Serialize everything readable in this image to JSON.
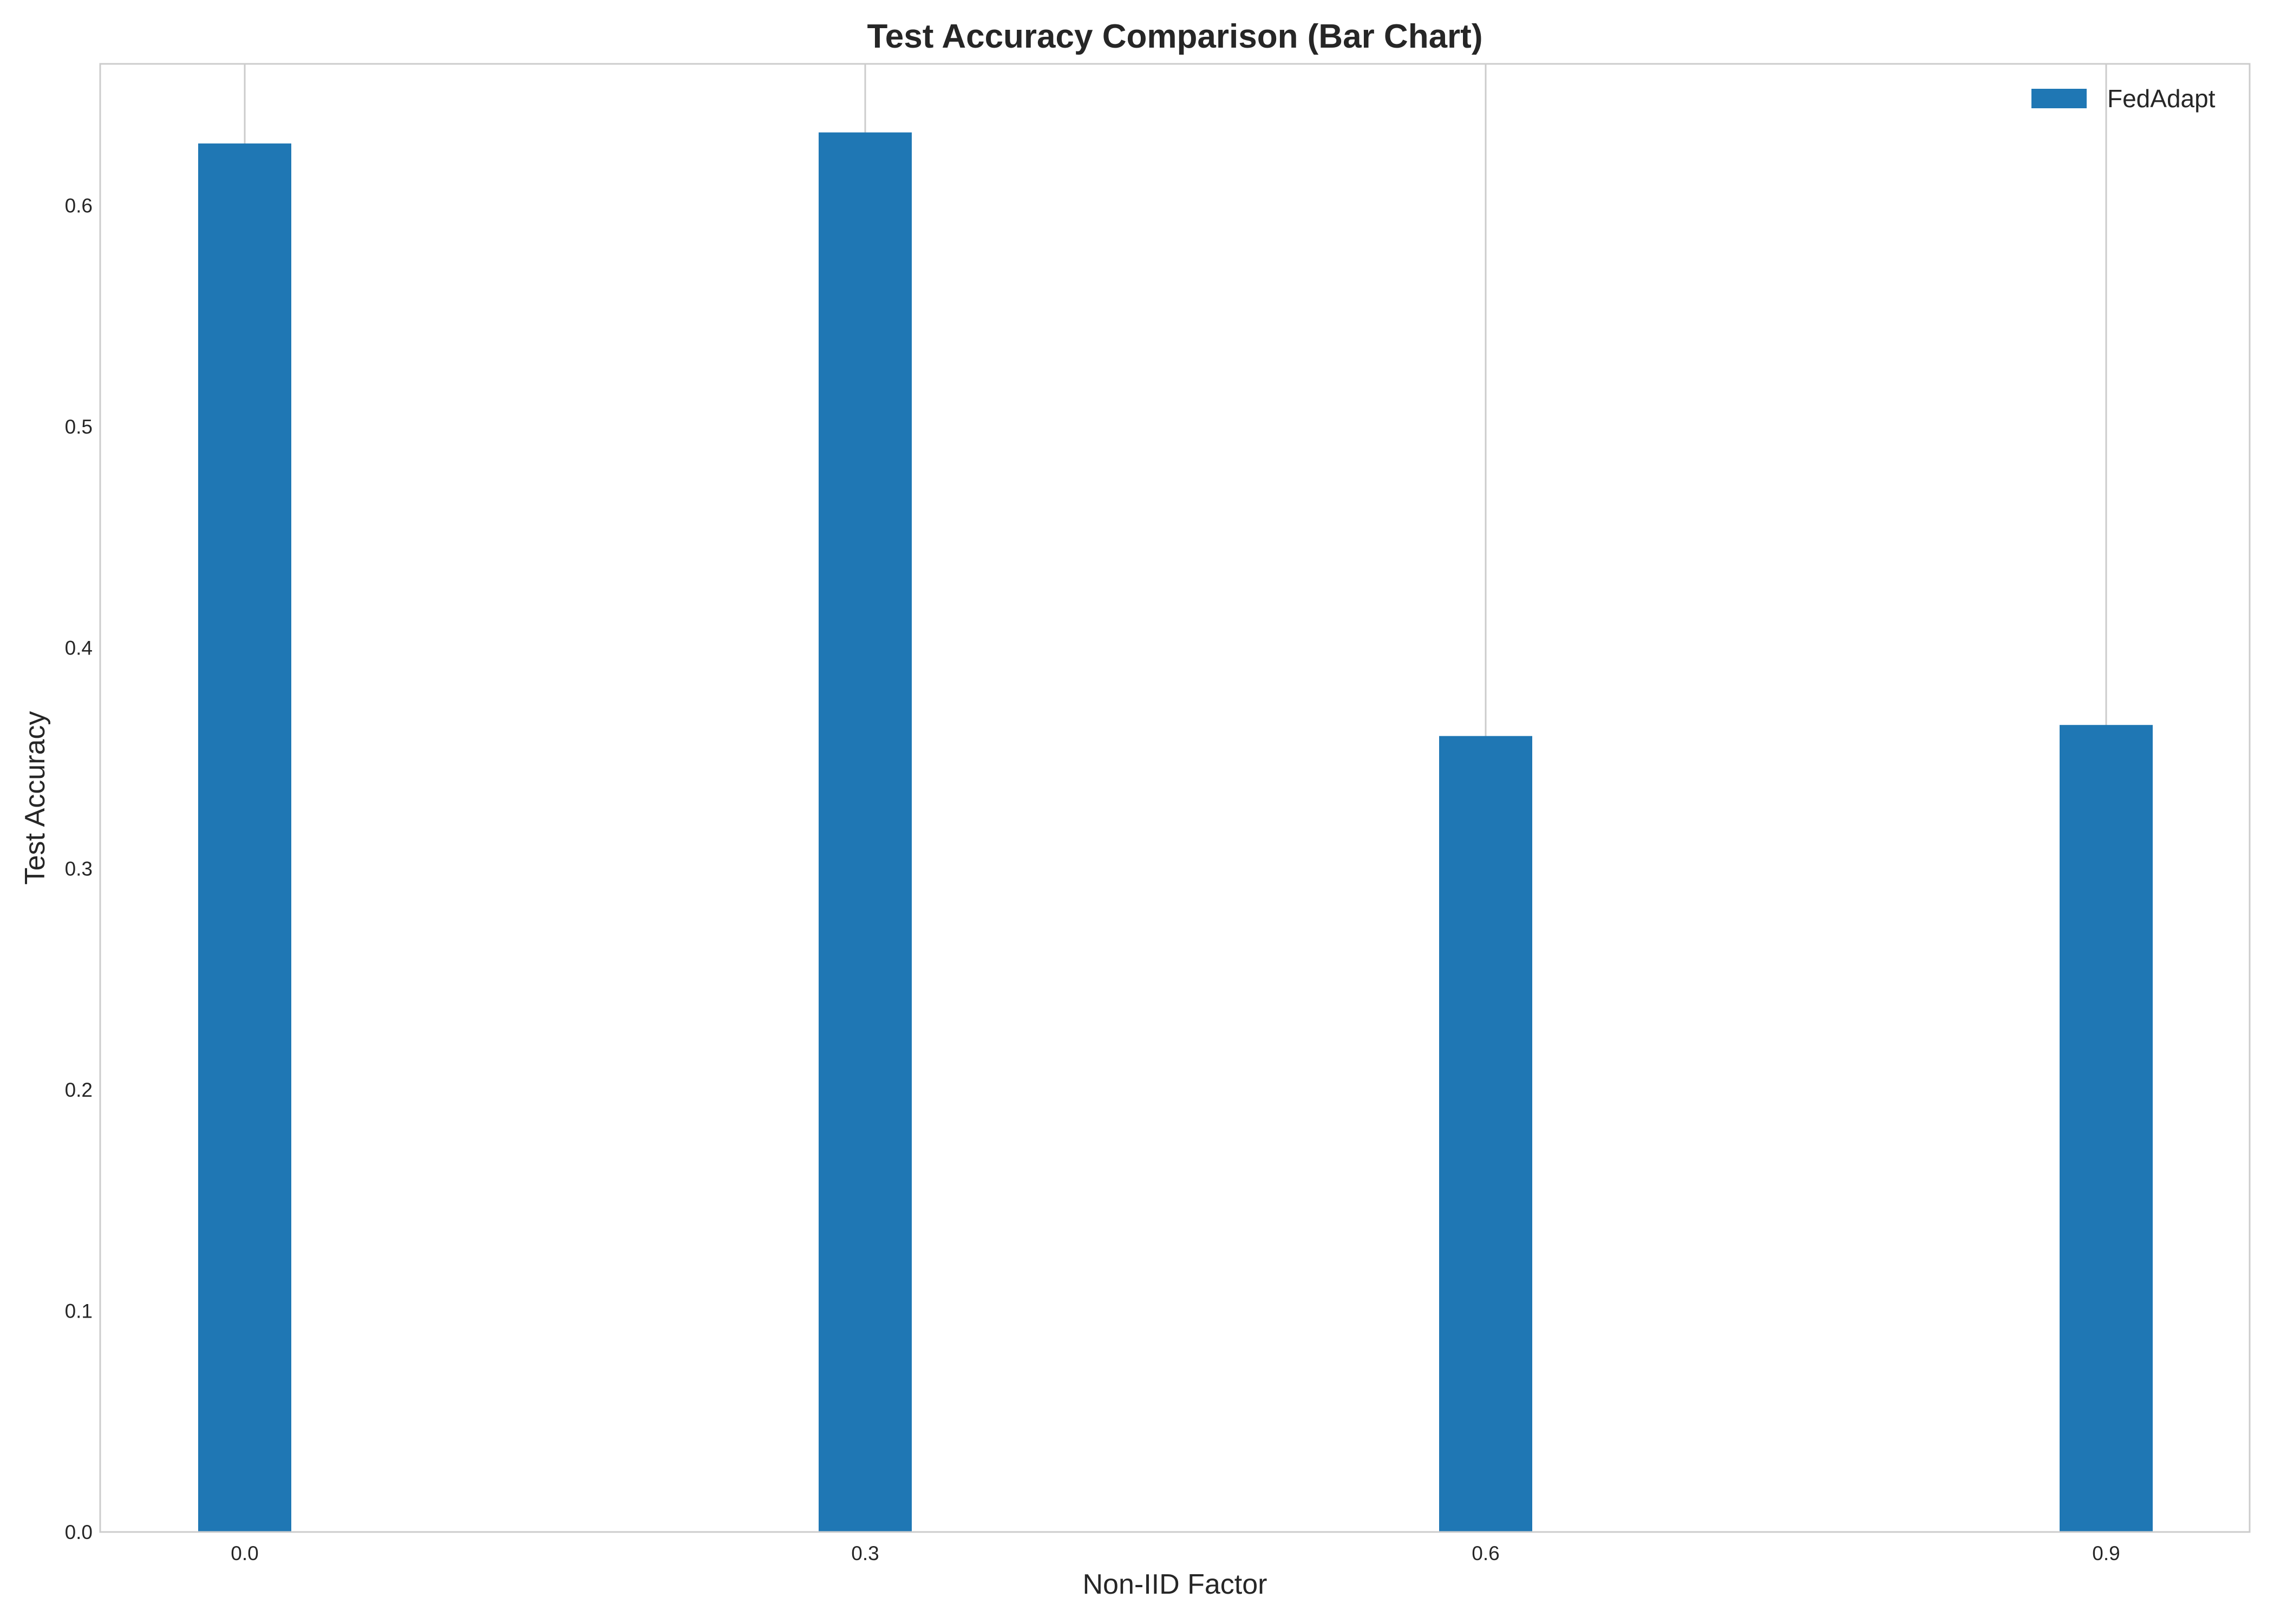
{
  "chart_data": {
    "type": "bar",
    "title": "Test Accuracy Comparison (Bar Chart)",
    "xlabel": "Non-IID Factor",
    "ylabel": "Test Accuracy",
    "categories": [
      "0.0",
      "0.3",
      "0.6",
      "0.9"
    ],
    "series": [
      {
        "name": "FedAdapt",
        "values": [
          0.628,
          0.633,
          0.36,
          0.365
        ],
        "color": "#1f77b4"
      }
    ],
    "ylim": [
      0,
      0.664
    ],
    "yticks": [
      "0.0",
      "0.1",
      "0.2",
      "0.3",
      "0.4",
      "0.5",
      "0.6"
    ],
    "grid": {
      "x": true,
      "y": false
    },
    "legend": "top-right"
  }
}
